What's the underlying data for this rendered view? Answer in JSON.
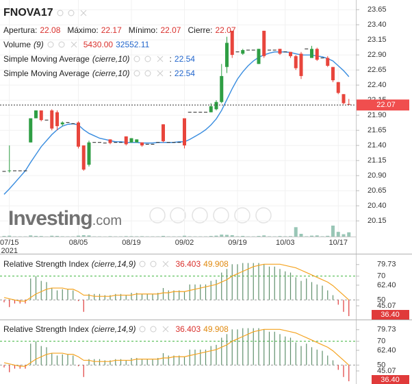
{
  "chart_data": [
    {
      "type": "candlestick",
      "title": "FNOVA17",
      "ohlc_labels": {
        "open": "Apertura:",
        "high": "Máximo:",
        "low": "Mínimo:",
        "close": "Cierre:"
      },
      "categories": [
        null,
        "07/15",
        null,
        null,
        null,
        null,
        null,
        null,
        null,
        null,
        null,
        null,
        null,
        null,
        "08/05",
        null,
        null,
        null,
        null,
        null,
        null,
        null,
        null,
        null,
        "08/19",
        null,
        null,
        null,
        null,
        null,
        null,
        null,
        null,
        null,
        "09/02",
        null,
        null,
        null,
        null,
        null,
        null,
        null,
        null,
        null,
        "09/19",
        null,
        null,
        null,
        null,
        null,
        null,
        null,
        null,
        "10/03",
        null,
        null,
        null,
        null,
        null,
        null,
        null,
        null,
        null,
        "10/17",
        null,
        null
      ],
      "year_label": "2021",
      "open": [
        20.97,
        20.97,
        20.98,
        20.98,
        20.98,
        21.45,
        21.85,
        21.98,
        21.82,
        21.98,
        21.95,
        21.75,
        21.78,
        21.76,
        21.78,
        21.4,
        21.08,
        21.45,
        21.45,
        21.44,
        21.5,
        21.45,
        21.45,
        21.55,
        21.45,
        21.45,
        21.45,
        21.42,
        21.42,
        21.45,
        21.75,
        21.45,
        21.45,
        21.45,
        21.85,
        21.95,
        21.95,
        21.95,
        21.95,
        21.95,
        22.0,
        22.12,
        22.7,
        23.3,
        22.95,
        22.92,
        22.98,
        22.98,
        22.75,
        23.3,
        22.98,
        22.98,
        23.0,
        22.95,
        22.95,
        22.88,
        22.92,
        23.0,
        22.85,
        23.0,
        22.85,
        22.85,
        22.7,
        22.45,
        22.25,
        22.08
      ],
      "high": [
        20.97,
        21.4,
        20.98,
        20.98,
        20.98,
        21.85,
        21.98,
        21.98,
        21.82,
        22.0,
        21.98,
        21.8,
        21.78,
        21.76,
        21.8,
        21.4,
        21.48,
        21.45,
        21.45,
        21.44,
        21.5,
        21.45,
        21.45,
        21.55,
        21.52,
        21.5,
        21.45,
        21.42,
        21.42,
        21.45,
        21.75,
        21.45,
        21.45,
        21.45,
        21.85,
        21.95,
        21.95,
        21.95,
        21.95,
        22.1,
        22.15,
        22.75,
        23.2,
        23.3,
        22.95,
        23.0,
        22.98,
        22.98,
        23.0,
        23.3,
        22.98,
        22.98,
        23.0,
        22.95,
        22.95,
        22.9,
        22.95,
        23.0,
        23.05,
        23.02,
        22.85,
        22.88,
        22.7,
        22.45,
        22.25,
        22.17
      ],
      "low": [
        20.97,
        20.95,
        20.98,
        20.98,
        20.98,
        21.45,
        21.85,
        21.8,
        21.82,
        21.65,
        21.65,
        21.72,
        21.78,
        21.76,
        21.35,
        20.98,
        21.05,
        21.45,
        21.45,
        21.44,
        21.42,
        21.45,
        21.45,
        21.4,
        21.45,
        21.45,
        21.38,
        21.42,
        21.42,
        21.45,
        21.45,
        21.45,
        21.45,
        21.45,
        21.35,
        21.95,
        21.95,
        21.95,
        21.95,
        21.95,
        21.98,
        22.1,
        22.6,
        22.85,
        22.95,
        22.9,
        22.98,
        22.98,
        22.75,
        22.85,
        22.98,
        22.98,
        22.9,
        22.95,
        22.85,
        22.65,
        22.5,
        23.0,
        22.85,
        22.8,
        22.85,
        22.7,
        22.45,
        22.25,
        22.08,
        22.07
      ],
      "close": [
        20.97,
        20.98,
        20.98,
        20.98,
        20.98,
        21.85,
        21.98,
        21.82,
        21.82,
        21.68,
        21.72,
        21.78,
        21.78,
        21.76,
        21.38,
        21.0,
        21.45,
        21.45,
        21.45,
        21.44,
        21.44,
        21.45,
        21.45,
        21.42,
        21.52,
        21.5,
        21.4,
        21.42,
        21.42,
        21.45,
        21.47,
        21.45,
        21.45,
        21.45,
        21.4,
        21.95,
        21.95,
        21.95,
        21.95,
        22.05,
        22.12,
        22.55,
        23.1,
        22.9,
        22.95,
        22.98,
        22.98,
        22.98,
        23.0,
        22.88,
        22.98,
        22.98,
        22.92,
        22.95,
        22.88,
        22.68,
        22.55,
        23.0,
        23.0,
        22.82,
        22.85,
        22.72,
        22.48,
        22.27,
        22.1,
        22.07
      ],
      "up_color": "#2f9e44",
      "down_color": "#e8453c",
      "flat_color": "#222222",
      "last_color": "#f04e4e",
      "ylim": [
        19.89,
        23.81
      ],
      "yticks": [
        23.65,
        {
          "value": 23.4,
          "label": "23.40"
        },
        23.15,
        {
          "value": 22.9,
          "label": "22.90"
        },
        22.65,
        {
          "value": 22.4,
          "label": "22.40"
        },
        22.15,
        {
          "value": 21.9,
          "label": "21.90"
        },
        21.65,
        {
          "value": 21.4,
          "label": "21.40"
        },
        21.15,
        {
          "value": 20.9,
          "label": "20.90"
        },
        20.65,
        {
          "value": 20.4,
          "label": "20.40"
        },
        20.15
      ],
      "grid": true,
      "volume": {
        "name": "Volume",
        "params": "(9)",
        "color": "#7fb8a4",
        "last_value_label": "5430.00",
        "ma": 32552.11,
        "values": [
          800,
          1200,
          300,
          300,
          300,
          1500,
          900,
          700,
          200,
          1100,
          900,
          400,
          300,
          300,
          1200,
          1800,
          1500,
          300,
          300,
          200,
          500,
          300,
          300,
          600,
          500,
          400,
          500,
          300,
          300,
          300,
          900,
          300,
          300,
          300,
          1100,
          400,
          300,
          300,
          300,
          800,
          1200,
          2500,
          2200,
          1800,
          400,
          900,
          300,
          300,
          800,
          1500,
          400,
          300,
          700,
          400,
          600,
          12000,
          3500,
          400,
          1200,
          1500,
          400,
          1000,
          14000,
          6000,
          3000,
          5430
        ]
      },
      "sma": [
        {
          "name": "Simple Moving Average",
          "params": "(cierre,10)",
          "sep": ":",
          "color": "#3d8fe0",
          "values": [
            20.59,
            20.68,
            20.78,
            20.88,
            20.98,
            21.12,
            21.25,
            21.38,
            21.48,
            21.58,
            21.66,
            21.72,
            21.75,
            21.76,
            21.74,
            21.66,
            21.6,
            21.56,
            21.52,
            21.5,
            21.48,
            21.46,
            21.46,
            21.45,
            21.45,
            21.45,
            21.44,
            21.44,
            21.44,
            21.45,
            21.45,
            21.45,
            21.45,
            21.46,
            21.46,
            21.5,
            21.55,
            21.6,
            21.66,
            21.74,
            21.84,
            21.98,
            22.16,
            22.34,
            22.5,
            22.62,
            22.72,
            22.8,
            22.86,
            22.9,
            22.93,
            22.95,
            22.95,
            22.95,
            22.94,
            22.92,
            22.9,
            22.9,
            22.9,
            22.88,
            22.87,
            22.84,
            22.8,
            22.72,
            22.64,
            22.54
          ]
        },
        {
          "name": "Simple Moving Average",
          "params": "(cierre,10)",
          "sep": ":",
          "color": "#3d8fe0",
          "values": [
            20.59,
            20.68,
            20.78,
            20.88,
            20.98,
            21.12,
            21.25,
            21.38,
            21.48,
            21.58,
            21.66,
            21.72,
            21.75,
            21.76,
            21.74,
            21.66,
            21.6,
            21.56,
            21.52,
            21.5,
            21.48,
            21.46,
            21.46,
            21.45,
            21.45,
            21.45,
            21.44,
            21.44,
            21.44,
            21.45,
            21.45,
            21.45,
            21.45,
            21.46,
            21.46,
            21.5,
            21.55,
            21.6,
            21.66,
            21.74,
            21.84,
            21.98,
            22.16,
            22.34,
            22.5,
            22.62,
            22.72,
            22.8,
            22.86,
            22.9,
            22.93,
            22.95,
            22.95,
            22.95,
            22.94,
            22.92,
            22.9,
            22.9,
            22.9,
            22.88,
            22.87,
            22.84,
            22.8,
            22.72,
            22.64,
            22.54
          ]
        }
      ],
      "watermark": {
        "brand": "Investing",
        "suffix": ".com"
      }
    },
    {
      "type": "rsi",
      "name": "Relative Strength Index",
      "params": "(cierre,14,9)",
      "values": [
        48,
        44,
        47,
        47,
        47,
        68,
        70,
        66,
        65,
        60,
        58,
        59,
        59,
        58,
        49,
        40,
        55,
        55,
        55,
        54,
        54,
        55,
        55,
        54,
        56,
        56,
        55,
        55,
        55,
        56,
        60,
        58,
        58,
        58,
        57,
        63,
        63,
        63,
        63,
        66,
        67,
        73,
        76,
        80,
        80,
        81,
        81,
        81,
        81,
        80,
        78,
        78,
        76,
        74,
        73,
        69,
        66,
        68,
        65,
        63,
        62,
        58,
        54,
        46,
        40,
        36.403
      ],
      "last_value_label": "36.40",
      "signal": {
        "color": "#f5a31f",
        "values": [
          52,
          51,
          50,
          49,
          49,
          52,
          55,
          57,
          59,
          60,
          60,
          60,
          59,
          59,
          57,
          54,
          54,
          53,
          53,
          53,
          53,
          54,
          54,
          54,
          54,
          55,
          55,
          55,
          55,
          55,
          56,
          56,
          57,
          57,
          57,
          58,
          59,
          60,
          61,
          62,
          63,
          65,
          67,
          70,
          72,
          74,
          76,
          78,
          79,
          80,
          80,
          80,
          80,
          79,
          78,
          77,
          75,
          73,
          71,
          69,
          67,
          65,
          62,
          58,
          54,
          49.908
        ]
      },
      "up_color": "#5f8f6c",
      "down_color": "#e03a3a",
      "baseline": 50,
      "levels": [
        {
          "value": 70,
          "color": "#3cb43c"
        },
        {
          "value": 50,
          "color": "#9a9a9a"
        }
      ],
      "ylim": [
        34.1,
        87.1
      ],
      "yticks": [
        79.73,
        70,
        {
          "value": 62.4,
          "label": "62.40"
        },
        50,
        45.07
      ]
    },
    {
      "type": "rsi",
      "name": "Relative Strength Index",
      "params": "(cierre,14,9)",
      "values": [
        48,
        44,
        47,
        47,
        47,
        68,
        70,
        66,
        65,
        60,
        58,
        59,
        59,
        58,
        49,
        40,
        55,
        55,
        55,
        54,
        54,
        55,
        55,
        54,
        56,
        56,
        55,
        55,
        55,
        56,
        60,
        58,
        58,
        58,
        57,
        63,
        63,
        63,
        63,
        66,
        67,
        73,
        76,
        80,
        80,
        81,
        81,
        81,
        81,
        80,
        78,
        78,
        76,
        74,
        73,
        69,
        66,
        68,
        65,
        63,
        62,
        58,
        54,
        46,
        40,
        36.403
      ],
      "last_value_label": "36.40",
      "signal": {
        "color": "#f5a31f",
        "values": [
          52,
          51,
          50,
          49,
          49,
          52,
          55,
          57,
          59,
          60,
          60,
          60,
          59,
          59,
          57,
          54,
          54,
          53,
          53,
          53,
          53,
          54,
          54,
          54,
          54,
          55,
          55,
          55,
          55,
          55,
          56,
          56,
          57,
          57,
          57,
          58,
          59,
          60,
          61,
          62,
          63,
          65,
          67,
          70,
          72,
          74,
          76,
          78,
          79,
          80,
          80,
          80,
          80,
          79,
          78,
          77,
          75,
          73,
          71,
          69,
          67,
          65,
          62,
          58,
          54,
          49.908
        ]
      },
      "up_color": "#5f8f6c",
      "down_color": "#e03a3a",
      "baseline": 50,
      "levels": [
        {
          "value": 70,
          "color": "#3cb43c"
        },
        {
          "value": 50,
          "color": "#9a9a9a"
        }
      ],
      "ylim": [
        34.1,
        87.1
      ],
      "yticks": [
        79.73,
        70,
        {
          "value": 62.4,
          "label": "62.40"
        },
        50,
        45.07
      ]
    }
  ]
}
